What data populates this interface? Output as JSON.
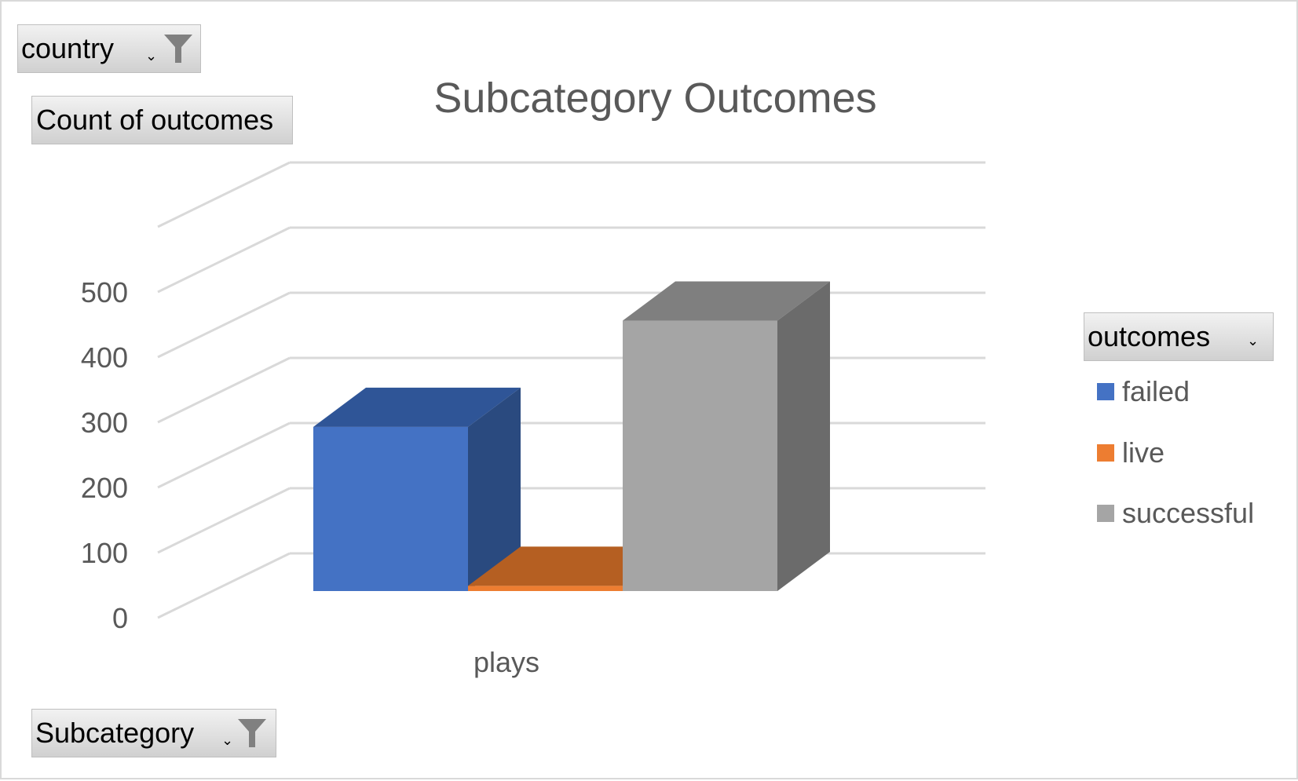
{
  "filters": {
    "country": {
      "label": "country",
      "icon": "funnel-icon",
      "arrow": "dropdown-arrow-icon"
    },
    "subcategory": {
      "label": "Subcategory",
      "icon": "funnel-icon",
      "arrow": "dropdown-arrow-icon"
    }
  },
  "value_field": {
    "label": "Count of outcomes"
  },
  "legend": {
    "field_label": "outcomes",
    "arrow": "dropdown-arrow-icon",
    "items": [
      {
        "label": "failed",
        "color": "#4472c4"
      },
      {
        "label": "live",
        "color": "#ed7d31"
      },
      {
        "label": "successful",
        "color": "#a5a5a5"
      }
    ]
  },
  "chart_data": {
    "type": "bar",
    "style": "3d-clustered-column",
    "title": "Subcategory Outcomes",
    "xlabel": "",
    "ylabel": "",
    "categories": [
      "plays"
    ],
    "series": [
      {
        "name": "failed",
        "values": [
          252
        ],
        "color": "#4472c4",
        "top_color": "#2f5597",
        "side_color": "#2a4a7f"
      },
      {
        "name": "live",
        "values": [
          8
        ],
        "color": "#ed7d31",
        "top_color": "#b55f22",
        "side_color": "#a85520"
      },
      {
        "name": "successful",
        "values": [
          415
        ],
        "color": "#a5a5a5",
        "top_color": "#7f7f7f",
        "side_color": "#6b6b6b"
      }
    ],
    "ylim": [
      0,
      600
    ],
    "yticks": [
      0,
      100,
      200,
      300,
      400,
      500
    ],
    "grid": true,
    "legend_position": "right"
  }
}
